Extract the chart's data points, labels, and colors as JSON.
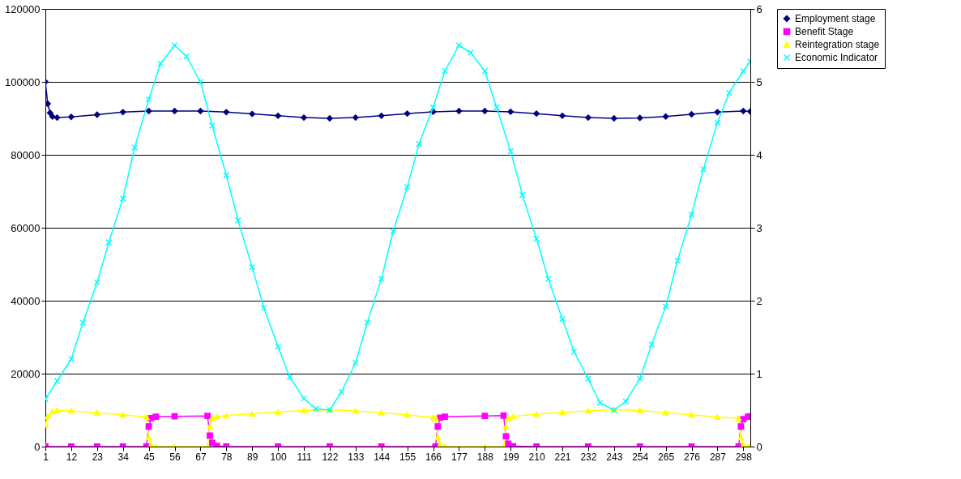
{
  "chart_data": {
    "type": "line",
    "xlim": [
      1,
      301
    ],
    "xticks": [
      1,
      12,
      23,
      34,
      45,
      56,
      67,
      78,
      89,
      100,
      111,
      122,
      133,
      144,
      155,
      166,
      177,
      188,
      199,
      210,
      221,
      232,
      243,
      254,
      265,
      276,
      287,
      298
    ],
    "ylim": [
      0,
      120000
    ],
    "yticks": [
      0,
      20000,
      40000,
      60000,
      80000,
      100000,
      120000
    ],
    "y2lim": [
      0,
      6
    ],
    "y2ticks": [
      0,
      1,
      2,
      3,
      4,
      5,
      6
    ],
    "grid": "y",
    "legend": "right",
    "line_style": "solid",
    "series": [
      {
        "name": "Employment stage",
        "color": "#000080",
        "marker": "diamond",
        "x": [
          1,
          2,
          3,
          4,
          6,
          12,
          23,
          34,
          45,
          56,
          67,
          78,
          89,
          100,
          111,
          122,
          133,
          144,
          155,
          166,
          177,
          188,
          199,
          210,
          221,
          232,
          243,
          254,
          265,
          276,
          287,
          298,
          301
        ],
        "values": [
          100000,
          94000,
          91500,
          90500,
          90200,
          90400,
          91000,
          91700,
          92000,
          92000,
          92000,
          91700,
          91200,
          90700,
          90200,
          90000,
          90200,
          90700,
          91300,
          91800,
          92000,
          92000,
          91800,
          91300,
          90700,
          90200,
          90000,
          90100,
          90500,
          91100,
          91700,
          92000,
          91900
        ]
      },
      {
        "name": "Benefit Stage",
        "color": "#ff00ff",
        "marker": "square",
        "x": [
          1,
          12,
          23,
          34,
          44,
          45,
          46,
          48,
          56,
          70,
          71,
          72,
          74,
          78,
          100,
          122,
          144,
          167,
          168,
          169,
          171,
          188,
          196,
          197,
          198,
          200,
          210,
          232,
          254,
          276,
          296,
          297,
          298,
          300,
          301
        ],
        "values": [
          0,
          0,
          0,
          0,
          0,
          5500,
          7800,
          8200,
          8300,
          8400,
          3000,
          1000,
          200,
          0,
          0,
          0,
          0,
          0,
          5500,
          7900,
          8200,
          8400,
          8500,
          2800,
          800,
          100,
          0,
          0,
          0,
          0,
          0,
          5500,
          7500,
          8200,
          8300
        ]
      },
      {
        "name": "Reintegration stage",
        "color": "#ffff00",
        "marker": "triangle",
        "x": [
          1,
          2,
          4,
          6,
          12,
          23,
          34,
          44,
          45,
          46,
          48,
          56,
          70,
          71,
          72,
          74,
          78,
          89,
          100,
          111,
          122,
          133,
          144,
          155,
          166,
          167,
          168,
          169,
          171,
          188,
          196,
          197,
          198,
          200,
          210,
          221,
          232,
          243,
          254,
          265,
          276,
          287,
          296,
          297,
          298,
          300,
          301
        ],
        "values": [
          6000,
          8200,
          9600,
          9900,
          9800,
          9300,
          8700,
          8100,
          2500,
          500,
          0,
          0,
          0,
          5500,
          7800,
          8300,
          8500,
          9000,
          9500,
          9900,
          10100,
          9800,
          9300,
          8700,
          8000,
          7800,
          2500,
          500,
          0,
          0,
          0,
          5500,
          7800,
          8300,
          8900,
          9400,
          9800,
          10100,
          9900,
          9300,
          8700,
          8100,
          7800,
          2500,
          500,
          0,
          0
        ]
      },
      {
        "name": "Economic Indicator",
        "color": "#00ffff",
        "marker": "cross",
        "axis": "y2",
        "x": [
          1,
          6,
          12,
          17,
          23,
          28,
          34,
          39,
          45,
          50,
          56,
          61,
          67,
          72,
          78,
          83,
          89,
          94,
          100,
          105,
          111,
          116,
          122,
          127,
          133,
          138,
          144,
          149,
          155,
          160,
          166,
          171,
          177,
          182,
          188,
          193,
          199,
          204,
          210,
          215,
          221,
          226,
          232,
          237,
          243,
          248,
          254,
          259,
          265,
          270,
          276,
          281,
          287,
          292,
          298,
          301
        ],
        "values": [
          0.65,
          0.9,
          1.2,
          1.7,
          2.25,
          2.8,
          3.4,
          4.1,
          4.76,
          5.25,
          5.5,
          5.35,
          5.0,
          4.4,
          3.72,
          3.1,
          2.46,
          1.9,
          1.37,
          0.95,
          0.66,
          0.52,
          0.5,
          0.75,
          1.15,
          1.7,
          2.3,
          2.95,
          3.56,
          4.15,
          4.65,
          5.15,
          5.5,
          5.4,
          5.15,
          4.65,
          4.05,
          3.45,
          2.85,
          2.3,
          1.75,
          1.3,
          0.93,
          0.6,
          0.5,
          0.62,
          0.93,
          1.4,
          1.92,
          2.55,
          3.18,
          3.8,
          4.44,
          4.85,
          5.15,
          5.28
        ]
      }
    ]
  }
}
